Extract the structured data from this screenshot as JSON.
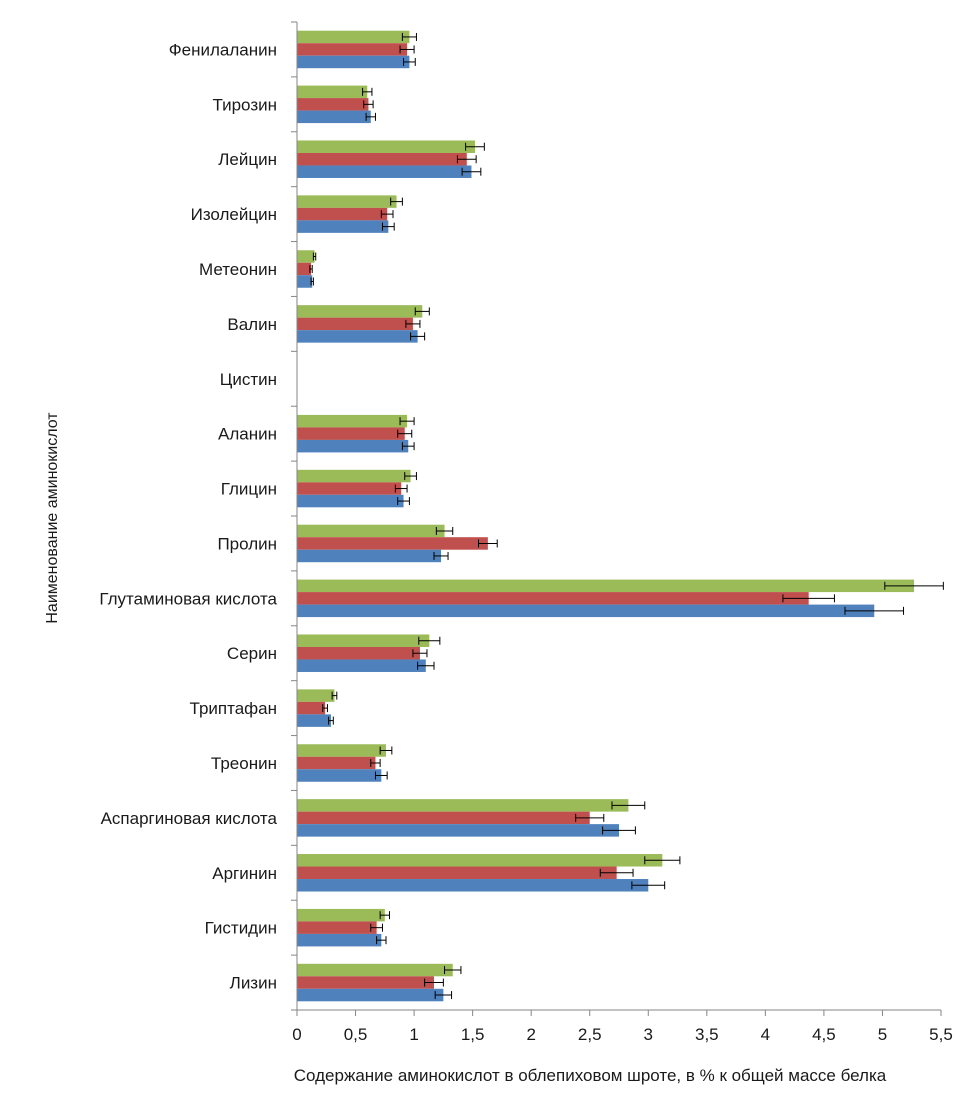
{
  "chart_data": {
    "type": "bar",
    "orientation": "horizontal",
    "xlabel": "Содержание аминокислот в облепиховом шроте, в % к общей массе  белка",
    "ylabel": "Наименование аминокислот",
    "xlim": [
      0,
      5.5
    ],
    "x_ticks": [
      "0",
      "0,5",
      "1",
      "1,5",
      "2",
      "2,5",
      "3",
      "3,5",
      "4",
      "4,5",
      "5",
      "5,5"
    ],
    "x_tick_values": [
      0,
      0.5,
      1,
      1.5,
      2,
      2.5,
      3,
      3.5,
      4,
      4.5,
      5,
      5.5
    ],
    "grid": false,
    "legend": "none",
    "categories": [
      "Фенилаланин",
      "Тирозин",
      "Лейцин",
      "Изолейцин",
      "Метеонин",
      "Валин",
      "Цистин",
      "Аланин",
      "Глицин",
      "Пролин",
      "Глутаминовая кислота",
      "Серин",
      "Триптафан",
      "Треонин",
      "Аспаргиновая кислота",
      "Аргинин",
      "Гистидин",
      "Лизин"
    ],
    "series": [
      {
        "color": "#9BBB59",
        "values": [
          0.96,
          0.6,
          1.52,
          0.85,
          0.15,
          1.07,
          0.0,
          0.94,
          0.97,
          1.26,
          5.27,
          1.13,
          0.32,
          0.76,
          2.83,
          3.12,
          0.75,
          1.33
        ],
        "errors": [
          0.06,
          0.04,
          0.08,
          0.05,
          0.01,
          0.06,
          0.0,
          0.06,
          0.05,
          0.07,
          0.25,
          0.09,
          0.02,
          0.05,
          0.14,
          0.15,
          0.04,
          0.07
        ]
      },
      {
        "color": "#C0504D",
        "values": [
          0.94,
          0.61,
          1.45,
          0.77,
          0.12,
          0.99,
          0.0,
          0.92,
          0.89,
          1.63,
          4.37,
          1.05,
          0.24,
          0.67,
          2.5,
          2.73,
          0.68,
          1.17
        ],
        "errors": [
          0.06,
          0.04,
          0.08,
          0.05,
          0.01,
          0.06,
          0.0,
          0.06,
          0.05,
          0.08,
          0.22,
          0.06,
          0.02,
          0.04,
          0.12,
          0.14,
          0.05,
          0.08
        ]
      },
      {
        "color": "#4F81BD",
        "values": [
          0.96,
          0.63,
          1.49,
          0.78,
          0.13,
          1.03,
          0.0,
          0.95,
          0.91,
          1.23,
          4.93,
          1.1,
          0.29,
          0.72,
          2.75,
          3.0,
          0.72,
          1.25
        ],
        "errors": [
          0.05,
          0.04,
          0.08,
          0.05,
          0.01,
          0.06,
          0.0,
          0.05,
          0.05,
          0.06,
          0.25,
          0.07,
          0.02,
          0.05,
          0.14,
          0.14,
          0.04,
          0.07
        ]
      }
    ]
  }
}
